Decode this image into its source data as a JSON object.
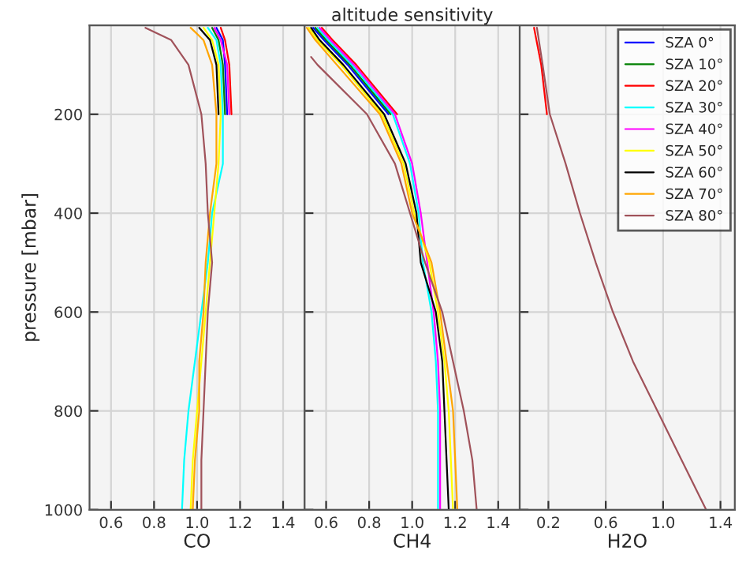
{
  "chart_data": [
    {
      "type": "line",
      "xlabel": "CO",
      "ylabel": "pressure [mbar]",
      "xlim": [
        0.5,
        1.5
      ],
      "xticks": [
        {
          "value": 0.6,
          "label": "0.6"
        },
        {
          "value": 0.8,
          "label": "0.8"
        },
        {
          "value": 1.0,
          "label": "1.0"
        },
        {
          "value": 1.2,
          "label": "1.2"
        },
        {
          "value": 1.4,
          "label": "1.4"
        }
      ],
      "ylim": [
        1000,
        20
      ],
      "yticks": [
        200,
        400,
        600,
        800,
        1000
      ],
      "grid": true,
      "legend": false,
      "series": [
        {
          "color": "#0000ff",
          "x": [
            1.09,
            1.12,
            1.13,
            1.14
          ],
          "values": [
            25,
            50,
            100,
            200
          ]
        },
        {
          "color": "#008000",
          "x": [
            1.07,
            1.1,
            1.12,
            1.13
          ],
          "values": [
            25,
            50,
            100,
            200
          ]
        },
        {
          "color": "#ff0000",
          "x": [
            1.11,
            1.13,
            1.15,
            1.16
          ],
          "values": [
            25,
            50,
            100,
            200
          ]
        },
        {
          "color": "#00ffff",
          "x": [
            1.05,
            1.09,
            1.11,
            1.12,
            1.12,
            1.07,
            1.05,
            1.02,
            0.99,
            0.96,
            0.94,
            0.93
          ],
          "values": [
            25,
            50,
            100,
            200,
            300,
            400,
            500,
            600,
            700,
            800,
            900,
            1000
          ]
        },
        {
          "color": "#ff00ff",
          "x": [
            1.08,
            1.11,
            1.14,
            1.15
          ],
          "values": [
            25,
            50,
            100,
            200
          ]
        },
        {
          "color": "#ffff00",
          "x": [
            1.03,
            1.07,
            1.1,
            1.11,
            1.1,
            1.08,
            1.06,
            1.04,
            1.02,
            1.0,
            0.98,
            0.97
          ],
          "values": [
            25,
            50,
            100,
            200,
            300,
            400,
            500,
            600,
            700,
            800,
            900,
            1000
          ]
        },
        {
          "color": "#000000",
          "x": [
            1.01,
            1.06,
            1.09,
            1.1
          ],
          "values": [
            25,
            50,
            100,
            200
          ]
        },
        {
          "color": "#ffa500",
          "x": [
            0.97,
            1.03,
            1.07,
            1.09,
            1.09,
            1.06,
            1.04,
            1.03,
            1.01,
            1.01,
            0.99,
            0.98
          ],
          "values": [
            25,
            50,
            100,
            200,
            300,
            400,
            500,
            600,
            700,
            800,
            900,
            1000
          ]
        },
        {
          "color": "#a0525a",
          "x": [
            0.76,
            0.88,
            0.96,
            1.02,
            1.04,
            1.05,
            1.07,
            1.05,
            1.04,
            1.03,
            1.02,
            1.02
          ],
          "values": [
            25,
            50,
            100,
            200,
            300,
            400,
            500,
            600,
            700,
            800,
            900,
            1000
          ]
        }
      ]
    },
    {
      "type": "line",
      "title": "altitude sensitivity",
      "xlabel": "CH4",
      "xlim": [
        0.5,
        1.5
      ],
      "xticks": [
        {
          "value": 0.6,
          "label": "0.6"
        },
        {
          "value": 0.8,
          "label": "0.8"
        },
        {
          "value": 1.0,
          "label": "1.0"
        },
        {
          "value": 1.2,
          "label": "1.2"
        },
        {
          "value": 1.4,
          "label": "1.4"
        }
      ],
      "ylim": [
        1000,
        20
      ],
      "yticks": [
        200,
        400,
        600,
        800,
        1000
      ],
      "tick_labels": "x",
      "grid": true,
      "legend": false,
      "series": [
        {
          "color": "#0000ff",
          "x": [
            0.54,
            0.59,
            0.7,
            0.89
          ],
          "values": [
            25,
            50,
            100,
            200
          ]
        },
        {
          "color": "#008000",
          "x": [
            0.55,
            0.6,
            0.71,
            0.9
          ],
          "values": [
            25,
            50,
            100,
            200
          ]
        },
        {
          "color": "#ff0000",
          "x": [
            0.58,
            0.63,
            0.74,
            0.93
          ],
          "values": [
            25,
            50,
            100,
            200
          ]
        },
        {
          "color": "#00ffff",
          "x": [
            0.56,
            0.61,
            0.72,
            0.91,
            0.99,
            1.03,
            1.05,
            1.09,
            1.11,
            1.12,
            1.12,
            1.12
          ],
          "values": [
            25,
            50,
            100,
            200,
            300,
            400,
            500,
            600,
            700,
            800,
            900,
            1000
          ]
        },
        {
          "color": "#ff00ff",
          "x": [
            0.57,
            0.62,
            0.73,
            0.92,
            1.0,
            1.04,
            1.07,
            1.1,
            1.12,
            1.13,
            1.13,
            1.13
          ],
          "values": [
            25,
            50,
            100,
            200,
            300,
            400,
            500,
            600,
            700,
            800,
            900,
            1000
          ]
        },
        {
          "color": "#ffff00",
          "x": [
            0.52,
            0.56,
            0.67,
            0.86,
            0.96,
            1.01,
            1.08,
            1.12,
            1.15,
            1.17,
            1.18,
            1.19
          ],
          "values": [
            25,
            50,
            100,
            200,
            300,
            400,
            500,
            600,
            700,
            800,
            900,
            1000
          ]
        },
        {
          "color": "#000000",
          "x": [
            0.53,
            0.57,
            0.68,
            0.87,
            0.97,
            1.02,
            1.04,
            1.11,
            1.14,
            1.15,
            1.16,
            1.17
          ],
          "values": [
            25,
            50,
            100,
            200,
            300,
            400,
            500,
            600,
            700,
            800,
            900,
            1000
          ]
        },
        {
          "color": "#ffa500",
          "x": [
            0.51,
            0.55,
            0.65,
            0.85,
            0.95,
            1.0,
            1.09,
            1.13,
            1.16,
            1.19,
            1.2,
            1.21
          ],
          "values": [
            25,
            50,
            100,
            200,
            300,
            400,
            500,
            600,
            700,
            800,
            900,
            1000
          ]
        },
        {
          "color": "#a0525a",
          "x": [
            0.53,
            0.56,
            0.79,
            0.92,
            0.99,
            1.06,
            1.14,
            1.19,
            1.24,
            1.28,
            1.3
          ],
          "values": [
            84,
            100,
            200,
            300,
            400,
            500,
            600,
            700,
            800,
            900,
            1000
          ]
        }
      ]
    },
    {
      "type": "line",
      "xlabel": "H2O",
      "xlim": [
        0.0,
        1.5
      ],
      "xticks": [
        0.2,
        0.6,
        {
          "value": 1.0,
          "label": "1.0"
        },
        1.4
      ],
      "ylim": [
        1000,
        20
      ],
      "yticks": [
        200,
        400,
        600,
        800,
        1000
      ],
      "tick_labels": "x",
      "grid": true,
      "legend": "top right",
      "series": [
        {
          "name": "SZA 0°",
          "color": "#0000ff",
          "x": [
            null
          ],
          "values": [
            null
          ]
        },
        {
          "name": "SZA 10°",
          "color": "#008000",
          "x": [
            null
          ],
          "values": [
            null
          ]
        },
        {
          "name": "SZA 20°",
          "color": "#ff0000",
          "x": [
            0.1,
            0.15,
            0.19
          ],
          "values": [
            25,
            100,
            200
          ]
        },
        {
          "name": "SZA 30°",
          "color": "#00ffff",
          "x": [
            null
          ],
          "values": [
            null
          ]
        },
        {
          "name": "SZA 40°",
          "color": "#ff00ff",
          "x": [
            null
          ],
          "values": [
            null
          ]
        },
        {
          "name": "SZA 50°",
          "color": "#ffff00",
          "x": [
            null
          ],
          "values": [
            null
          ]
        },
        {
          "name": "SZA 60°",
          "color": "#000000",
          "x": [
            null
          ],
          "values": [
            null
          ]
        },
        {
          "name": "SZA 70°",
          "color": "#ffa500",
          "x": [
            null
          ],
          "values": [
            null
          ]
        },
        {
          "name": "SZA 80°",
          "color": "#a0525a",
          "x": [
            0.12,
            0.16,
            0.21,
            0.32,
            0.42,
            0.53,
            0.65,
            0.79,
            0.96,
            1.13,
            1.3
          ],
          "values": [
            25,
            100,
            200,
            300,
            400,
            500,
            600,
            700,
            800,
            900,
            1000
          ]
        }
      ]
    }
  ]
}
